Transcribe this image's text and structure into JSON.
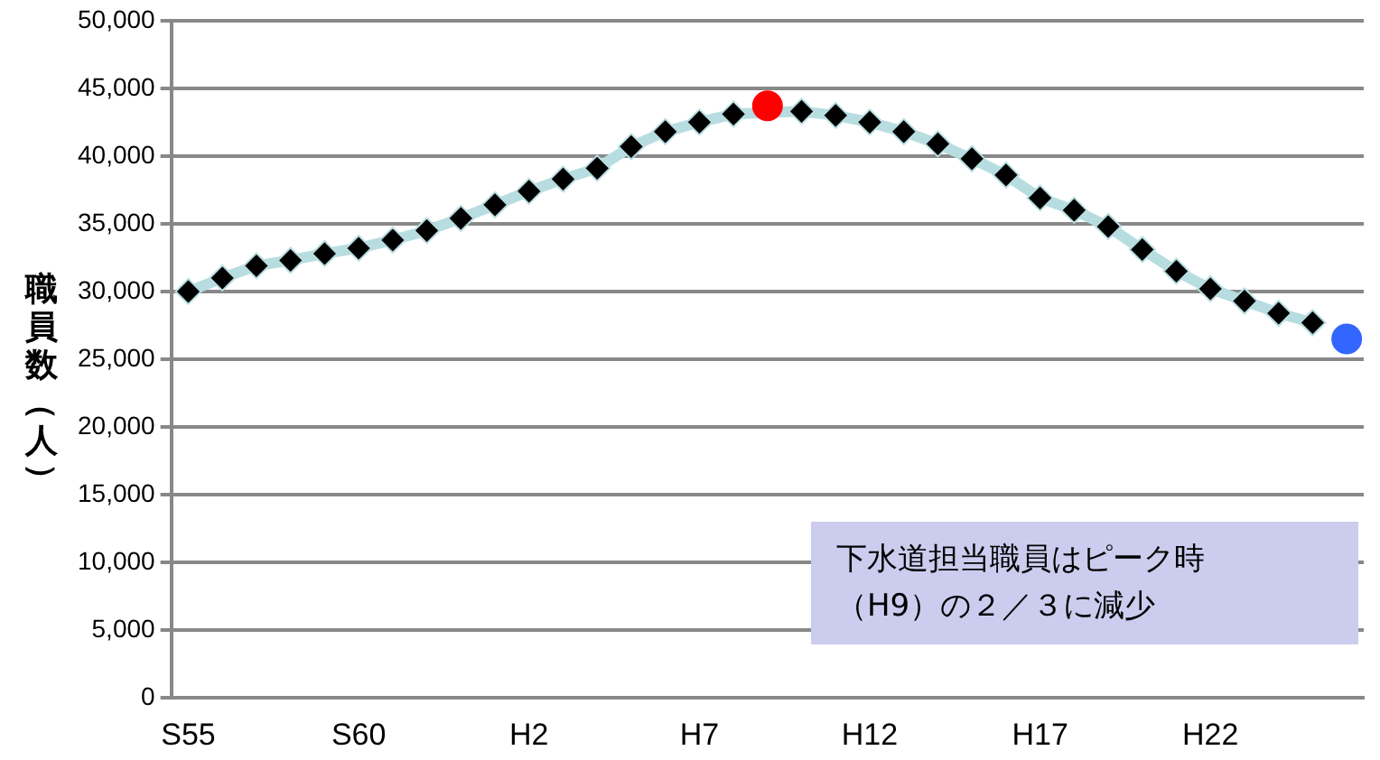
{
  "chart_data": {
    "type": "line",
    "ylabel": "職員数（人）",
    "categories": [
      "S55",
      null,
      null,
      null,
      null,
      "S60",
      null,
      null,
      null,
      null,
      "H2",
      null,
      null,
      null,
      null,
      "H7",
      null,
      null,
      null,
      null,
      "H12",
      null,
      null,
      null,
      null,
      "H17",
      null,
      null,
      null,
      null,
      "H22",
      null,
      null,
      null,
      null
    ],
    "series": [
      {
        "color": "#b7dde0",
        "marker": "diamond",
        "colors": [
          "#000000",
          "#000000",
          "#000000",
          "#000000",
          "#000000",
          "#000000",
          "#000000",
          "#000000",
          "#000000",
          "#000000",
          "#000000",
          "#000000",
          "#000000",
          "#000000",
          "#000000",
          "#000000",
          "#000000",
          "#000000",
          "#000000",
          "#000000",
          "#000000",
          "#000000",
          "#000000",
          "#000000",
          "#000000",
          "#000000",
          "#000000",
          "#000000",
          "#000000",
          "#000000",
          "#000000",
          "#000000",
          "#000000",
          "#000000",
          "#000000"
        ],
        "values": [
          30000,
          31000,
          31900,
          32300,
          32800,
          33200,
          33800,
          34500,
          35400,
          36400,
          37400,
          38300,
          39100,
          40700,
          41800,
          42500,
          43100,
          null,
          43300,
          43000,
          42500,
          41800,
          40900,
          39800,
          38600,
          36900,
          36000,
          34800,
          33100,
          31500,
          30200,
          29300,
          28400,
          27700,
          null
        ]
      },
      {
        "type": "scatter",
        "color": "#ff0000",
        "marker": "circle",
        "values": [
          null,
          null,
          null,
          null,
          null,
          null,
          null,
          null,
          null,
          null,
          null,
          null,
          null,
          null,
          null,
          null,
          null,
          43700,
          null,
          null,
          null,
          null,
          null,
          null,
          null,
          null,
          null,
          null,
          null,
          null,
          null,
          null,
          null,
          null,
          null
        ]
      },
      {
        "type": "scatter",
        "color": "#3366ff",
        "marker": "circle",
        "values": [
          null,
          null,
          null,
          null,
          null,
          null,
          null,
          null,
          null,
          null,
          null,
          null,
          null,
          null,
          null,
          null,
          null,
          null,
          null,
          null,
          null,
          null,
          null,
          null,
          null,
          null,
          null,
          null,
          null,
          null,
          null,
          null,
          null,
          null,
          26500
        ]
      }
    ],
    "ylim": [
      0,
      50000
    ],
    "yticks": [
      0,
      {
        "value": 5000,
        "label": "5,000"
      },
      {
        "value": 10000,
        "label": "10,000"
      },
      {
        "value": 15000,
        "label": "15,000"
      },
      {
        "value": 20000,
        "label": "20,000"
      },
      {
        "value": 25000,
        "label": "25,000"
      },
      {
        "value": 30000,
        "label": "30,000"
      },
      {
        "value": 35000,
        "label": "35,000"
      },
      {
        "value": 40000,
        "label": "40,000"
      },
      {
        "value": 45000,
        "label": "45,000"
      },
      {
        "value": 50000,
        "label": "50,000"
      }
    ],
    "grid": "y",
    "legend": false,
    "annotations": [
      "下水道担当職員はピーク時（H9）の２／３に減少"
    ]
  }
}
